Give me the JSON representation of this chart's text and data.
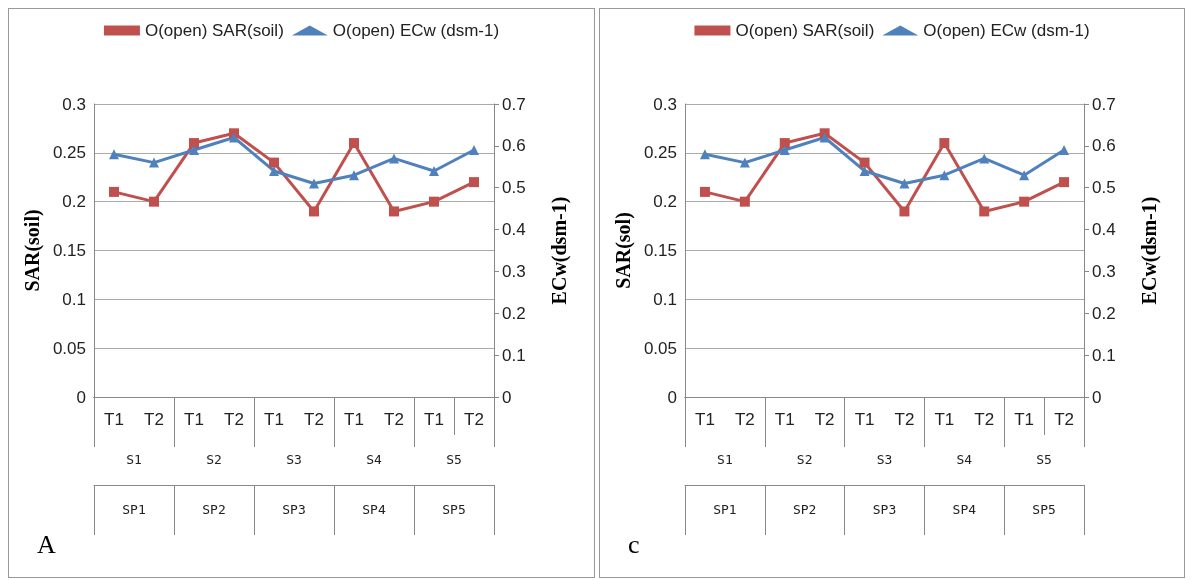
{
  "chart_data": [
    {
      "type": "line",
      "categories": [
        "T1",
        "T2",
        "T1",
        "T2",
        "T1",
        "T2",
        "T1",
        "T2",
        "T1",
        "T2"
      ],
      "series": [
        {
          "name": "O(open) SAR(soil)",
          "color": "#c0504d",
          "marker": "square",
          "values": [
            0.21,
            0.2,
            0.26,
            0.27,
            0.24,
            0.19,
            0.26,
            0.19,
            0.2,
            0.22
          ]
        },
        {
          "name": "O(open) ECw (dsm-1)",
          "color": "#4f81bd",
          "marker": "triangle",
          "axis": "y2",
          "values": [
            0.58,
            0.56,
            0.59,
            0.62,
            0.54,
            0.51,
            0.53,
            0.57,
            0.54,
            0.59
          ]
        }
      ],
      "ylabel": "SAR(soil)",
      "y2label": "ECw(dsm-1)",
      "ylim": [
        0,
        0.3
      ],
      "yticks": [
        0,
        0.05,
        0.1,
        0.15,
        0.2,
        0.25,
        0.3
      ],
      "y2lim": [
        0,
        0.7
      ],
      "y2ticks": [
        0,
        0.1,
        0.2,
        0.3,
        0.4,
        0.5,
        0.6,
        0.7
      ],
      "grid": "y",
      "legend": "top",
      "annotations": [
        "S1",
        "S2",
        "S3",
        "S4",
        "S5",
        "SP1",
        "SP2",
        "SP3",
        "SP4",
        "SP5",
        "A"
      ]
    },
    {
      "type": "line",
      "categories": [
        "T1",
        "T2",
        "T1",
        "T2",
        "T1",
        "T2",
        "T1",
        "T2",
        "T1",
        "T2"
      ],
      "series": [
        {
          "name": "O(open) SAR(soil)",
          "color": "#c0504d",
          "marker": "square",
          "values": [
            0.21,
            0.2,
            0.26,
            0.27,
            0.24,
            0.19,
            0.26,
            0.19,
            0.2,
            0.22
          ]
        },
        {
          "name": "O(open) ECw (dsm-1)",
          "color": "#4f81bd",
          "marker": "triangle",
          "axis": "y2",
          "values": [
            0.58,
            0.56,
            0.59,
            0.62,
            0.54,
            0.51,
            0.53,
            0.57,
            0.53,
            0.59
          ]
        }
      ],
      "ylabel": "SAR(sol)",
      "y2label": "ECw(dsm-1)",
      "ylim": [
        0,
        0.3
      ],
      "yticks": [
        0,
        0.05,
        0.1,
        0.15,
        0.2,
        0.25,
        0.3
      ],
      "y2lim": [
        0,
        0.7
      ],
      "y2ticks": [
        0,
        0.1,
        0.2,
        0.3,
        0.4,
        0.5,
        0.6,
        0.7
      ],
      "grid": "y",
      "legend": "top",
      "annotations": [
        "S1",
        "S2",
        "S3",
        "S4",
        "S5",
        "SP1",
        "SP2",
        "SP3",
        "SP4",
        "SP5",
        "c"
      ]
    }
  ]
}
